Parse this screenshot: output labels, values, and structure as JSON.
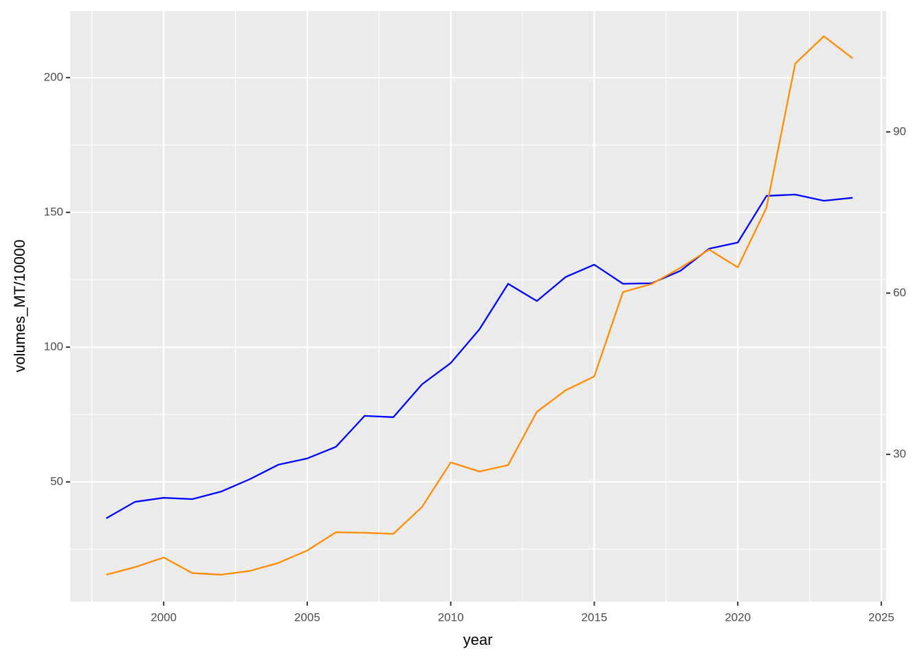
{
  "chart_data": {
    "type": "line",
    "x_label": "year",
    "y_label": "volumes_MT/10000",
    "x": [
      1998,
      1999,
      2000,
      2001,
      2002,
      2003,
      2004,
      2005,
      2006,
      2007,
      2008,
      2009,
      2010,
      2011,
      2012,
      2013,
      2014,
      2015,
      2016,
      2017,
      2018,
      2019,
      2020,
      2021,
      2022,
      2023,
      2024
    ],
    "series": [
      {
        "color": "#0000ff",
        "values": [
          36.5,
          42.6,
          44.1,
          43.6,
          46.4,
          51.0,
          56.4,
          58.7,
          63.0,
          74.5,
          74.0,
          86.2,
          94.1,
          106.6,
          123.5,
          117.1,
          126.0,
          130.6,
          123.5,
          123.7,
          128.3,
          136.5,
          138.8,
          156.1,
          156.6,
          154.3,
          155.4
        ]
      },
      {
        "color": "#ff8c00",
        "axis": "y2",
        "values": [
          7.6,
          9.0,
          10.8,
          7.9,
          7.6,
          8.3,
          9.8,
          12.1,
          15.5,
          15.4,
          15.2,
          20.2,
          28.5,
          26.8,
          28.0,
          37.9,
          41.9,
          44.5,
          60.2,
          61.7,
          64.7,
          68.1,
          64.8,
          75.9,
          102.7,
          107.8,
          103.7
        ]
      }
    ],
    "xlim": [
      1996.74,
      2025.17
    ],
    "xticks": [
      2000,
      2005,
      2010,
      2015,
      2020,
      2025
    ],
    "ylim": [
      5.6,
      224.7
    ],
    "yticks": [
      50,
      100,
      150,
      200
    ],
    "y2lim": [
      2.6,
      112.5
    ],
    "y2ticks": [
      30,
      60,
      90
    ],
    "grid": true
  }
}
